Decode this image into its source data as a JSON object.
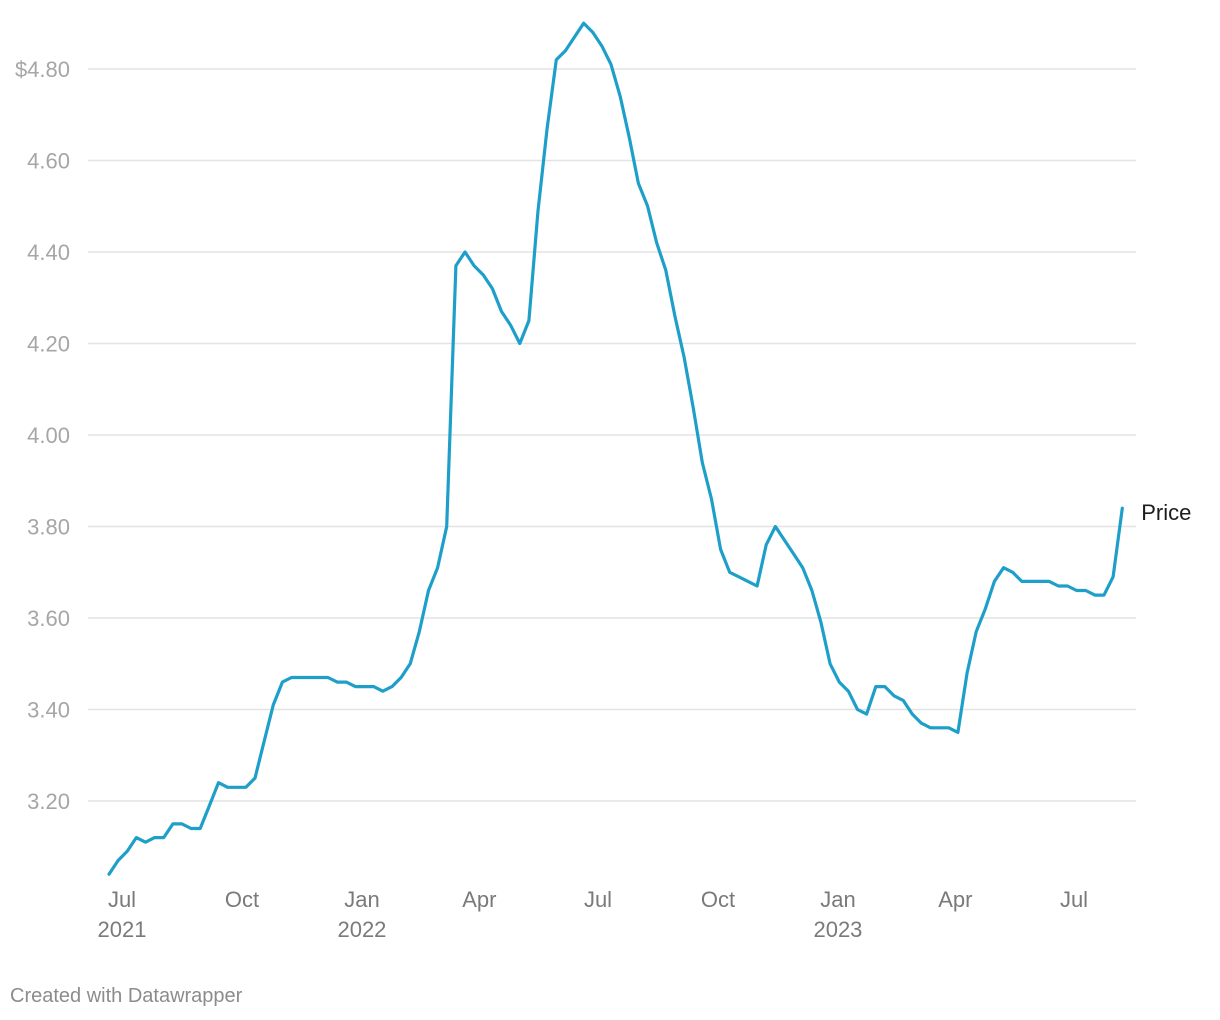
{
  "chart_data": {
    "type": "line",
    "title": "",
    "xlabel": "",
    "ylabel": "",
    "ylim": [
      3.02,
      4.92
    ],
    "grid": true,
    "y_ticks": [
      {
        "value": 3.2,
        "label": "3.20"
      },
      {
        "value": 3.4,
        "label": "3.40"
      },
      {
        "value": 3.6,
        "label": "3.60"
      },
      {
        "value": 3.8,
        "label": "3.80"
      },
      {
        "value": 4.0,
        "label": "4.00"
      },
      {
        "value": 4.2,
        "label": "4.20"
      },
      {
        "value": 4.4,
        "label": "4.40"
      },
      {
        "value": 4.6,
        "label": "4.60"
      },
      {
        "value": 4.8,
        "label": "$4.80"
      }
    ],
    "x_ticks": [
      {
        "date": "2021-07-01",
        "label": "Jul",
        "sublabel": "2021"
      },
      {
        "date": "2021-10-01",
        "label": "Oct",
        "sublabel": ""
      },
      {
        "date": "2022-01-01",
        "label": "Jan",
        "sublabel": "2022"
      },
      {
        "date": "2022-04-01",
        "label": "Apr",
        "sublabel": ""
      },
      {
        "date": "2022-07-01",
        "label": "Jul",
        "sublabel": ""
      },
      {
        "date": "2022-10-01",
        "label": "Oct",
        "sublabel": ""
      },
      {
        "date": "2023-01-01",
        "label": "Jan",
        "sublabel": "2023"
      },
      {
        "date": "2023-04-01",
        "label": "Apr",
        "sublabel": ""
      },
      {
        "date": "2023-07-01",
        "label": "Jul",
        "sublabel": ""
      }
    ],
    "series": [
      {
        "name": "Price",
        "color": "#1d9fc9",
        "x": [
          "2021-06-21",
          "2021-06-28",
          "2021-07-05",
          "2021-07-12",
          "2021-07-19",
          "2021-07-26",
          "2021-08-02",
          "2021-08-09",
          "2021-08-16",
          "2021-08-23",
          "2021-08-30",
          "2021-09-06",
          "2021-09-13",
          "2021-09-20",
          "2021-09-27",
          "2021-10-04",
          "2021-10-11",
          "2021-10-18",
          "2021-10-25",
          "2021-11-01",
          "2021-11-08",
          "2021-11-15",
          "2021-11-22",
          "2021-11-29",
          "2021-12-06",
          "2021-12-13",
          "2021-12-20",
          "2021-12-27",
          "2022-01-03",
          "2022-01-10",
          "2022-01-17",
          "2022-01-24",
          "2022-01-31",
          "2022-02-07",
          "2022-02-14",
          "2022-02-21",
          "2022-02-28",
          "2022-03-07",
          "2022-03-14",
          "2022-03-21",
          "2022-03-28",
          "2022-04-04",
          "2022-04-11",
          "2022-04-18",
          "2022-04-25",
          "2022-05-02",
          "2022-05-09",
          "2022-05-16",
          "2022-05-23",
          "2022-05-30",
          "2022-06-06",
          "2022-06-13",
          "2022-06-20",
          "2022-06-27",
          "2022-07-04",
          "2022-07-11",
          "2022-07-18",
          "2022-07-25",
          "2022-08-01",
          "2022-08-08",
          "2022-08-15",
          "2022-08-22",
          "2022-08-29",
          "2022-09-05",
          "2022-09-12",
          "2022-09-19",
          "2022-09-26",
          "2022-10-03",
          "2022-10-10",
          "2022-10-17",
          "2022-10-24",
          "2022-10-31",
          "2022-11-07",
          "2022-11-14",
          "2022-11-21",
          "2022-11-28",
          "2022-12-05",
          "2022-12-12",
          "2022-12-19",
          "2022-12-26",
          "2023-01-02",
          "2023-01-09",
          "2023-01-16",
          "2023-01-23",
          "2023-01-30",
          "2023-02-06",
          "2023-02-13",
          "2023-02-20",
          "2023-02-27",
          "2023-03-06",
          "2023-03-13",
          "2023-03-20",
          "2023-03-27",
          "2023-04-03",
          "2023-04-10",
          "2023-04-17",
          "2023-04-24",
          "2023-05-01",
          "2023-05-08",
          "2023-05-15",
          "2023-05-22",
          "2023-05-29",
          "2023-06-05",
          "2023-06-12",
          "2023-06-19",
          "2023-06-26",
          "2023-07-03",
          "2023-07-10",
          "2023-07-17",
          "2023-07-24",
          "2023-07-31",
          "2023-08-07"
        ],
        "values": [
          3.04,
          3.07,
          3.09,
          3.12,
          3.11,
          3.12,
          3.12,
          3.15,
          3.15,
          3.14,
          3.14,
          3.19,
          3.24,
          3.23,
          3.23,
          3.23,
          3.25,
          3.33,
          3.41,
          3.46,
          3.47,
          3.47,
          3.47,
          3.47,
          3.47,
          3.46,
          3.46,
          3.45,
          3.45,
          3.45,
          3.44,
          3.45,
          3.47,
          3.5,
          3.57,
          3.66,
          3.71,
          3.8,
          4.37,
          4.4,
          4.37,
          4.35,
          4.32,
          4.27,
          4.24,
          4.2,
          4.25,
          4.49,
          4.67,
          4.82,
          4.84,
          4.87,
          4.9,
          4.88,
          4.85,
          4.81,
          4.74,
          4.65,
          4.55,
          4.5,
          4.42,
          4.36,
          4.26,
          4.17,
          4.06,
          3.94,
          3.86,
          3.75,
          3.7,
          3.69,
          3.68,
          3.67,
          3.76,
          3.8,
          3.77,
          3.74,
          3.71,
          3.66,
          3.59,
          3.5,
          3.46,
          3.44,
          3.4,
          3.39,
          3.45,
          3.45,
          3.43,
          3.42,
          3.39,
          3.37,
          3.36,
          3.36,
          3.36,
          3.35,
          3.48,
          3.57,
          3.62,
          3.68,
          3.71,
          3.7,
          3.68,
          3.68,
          3.68,
          3.68,
          3.67,
          3.67,
          3.66,
          3.66,
          3.65,
          3.65,
          3.69,
          3.84
        ]
      }
    ]
  },
  "footer": {
    "credit": "Created with Datawrapper"
  }
}
